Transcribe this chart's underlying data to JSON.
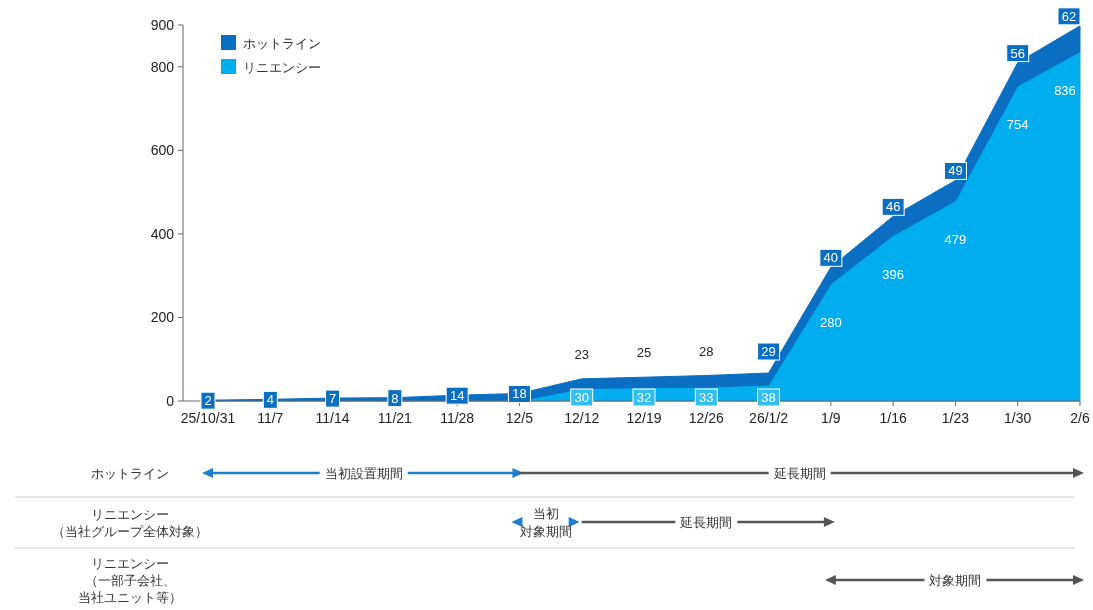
{
  "chart_data": {
    "type": "area",
    "stacked": true,
    "legend": "top left",
    "grid": false,
    "categories": [
      "25/10/31",
      "11/7",
      "11/14",
      "11/21",
      "11/28",
      "12/5",
      "12/12",
      "12/19",
      "12/26",
      "26/1/2",
      "1/9",
      "1/16",
      "1/23",
      "1/30",
      "2/6"
    ],
    "ylim": [
      0,
      900
    ],
    "yticks": [
      0,
      200,
      400,
      600,
      800,
      900
    ],
    "series": [
      {
        "name": "リニエンシー",
        "color": "#00aeef",
        "values": [
          null,
          null,
          null,
          null,
          null,
          0,
          30,
          32,
          33,
          38,
          280,
          396,
          479,
          754,
          836
        ],
        "value_labels": [
          null,
          null,
          null,
          null,
          null,
          null,
          "30",
          "32",
          "33",
          "38",
          "280",
          "396",
          "479",
          "754",
          "836"
        ]
      },
      {
        "name": "ホットライン",
        "color": "#0a6fc2",
        "values": [
          2,
          4,
          7,
          8,
          14,
          18,
          23,
          25,
          28,
          29,
          40,
          46,
          49,
          56,
          62
        ],
        "value_labels": [
          "2",
          "4",
          "7",
          "8",
          "14",
          "18",
          "23",
          "25",
          "28",
          "29",
          "40",
          "46",
          "49",
          "56",
          "62"
        ]
      }
    ],
    "annotations": [
      "ホットライン",
      "当初設置期間",
      "延長期間",
      "リニエンシー（当社グループ全体対象）",
      "当初",
      "対象期間",
      "延長期間",
      "リニエンシー（一部子会社、当社ユニット等）",
      "対象期間"
    ]
  }
}
